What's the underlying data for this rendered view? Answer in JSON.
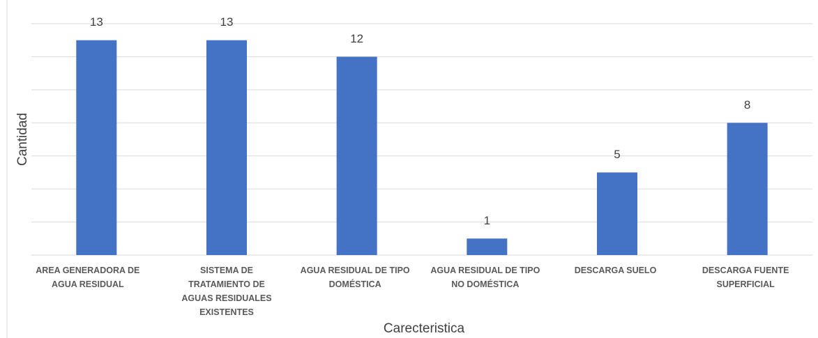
{
  "chart_data": {
    "type": "bar",
    "categories": [
      "AREA GENERADORA DE AGUA RESIDUAL",
      "SISTEMA DE TRATAMIENTO DE AGUAS RESIDUALES EXISTENTES",
      "AGUA RESIDUAL DE TIPO DOMÉSTICA",
      "AGUA RESIDUAL DE TIPO NO DOMÉSTICA",
      "DESCARGA SUELO",
      "DESCARGA FUENTE SUPERFICIAL"
    ],
    "values": [
      13,
      13,
      12,
      1,
      5,
      8
    ],
    "color": "#4472c4",
    "xlabel": "Carecteristica",
    "ylabel": "Cantidad",
    "ylim": [
      0,
      14
    ],
    "yticks": [
      0,
      2,
      4,
      6,
      8,
      10,
      12,
      14
    ],
    "grid": true
  }
}
